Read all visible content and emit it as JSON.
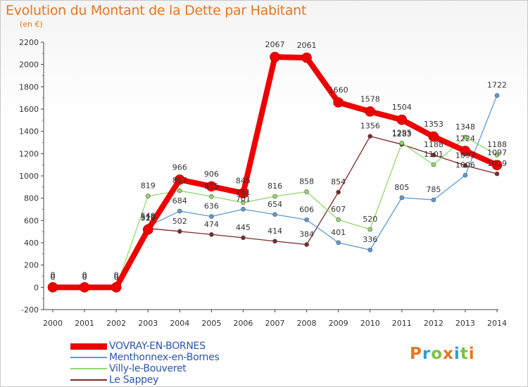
{
  "title": "Evolution du Montant de la Dette par Habitant",
  "unit_label": "(en €)",
  "logo_text": "Proxiti",
  "logo_colors": [
    "#e7761f",
    "#2a9fd6",
    "#7bc143",
    "#e7761f",
    "#2a9fd6",
    "#7bc143",
    "#e7761f"
  ],
  "chart_data": {
    "type": "line",
    "x": [
      "2000",
      "2001",
      "2002",
      "2003",
      "2004",
      "2005",
      "2006",
      "2007",
      "2008",
      "2009",
      "2010",
      "2011",
      "2012",
      "2013",
      "2014"
    ],
    "ylim": [
      -200,
      2200
    ],
    "yticks": [
      -200,
      0,
      200,
      400,
      600,
      800,
      1000,
      1200,
      1400,
      1600,
      1800,
      2000,
      2200
    ],
    "grid": false,
    "legend_position": "bottom-left",
    "series": [
      {
        "name": "VOVRAY-EN-BORNES",
        "color": "#ee0000",
        "width": 8,
        "marker": 7,
        "values": [
          0,
          0,
          0,
          518,
          966,
          906,
          845,
          2067,
          2061,
          1660,
          1578,
          1504,
          1353,
          1224,
          1097
        ]
      },
      {
        "name": "Menthonnex-en-Bornes",
        "color": "#5b9bd5",
        "width": 1.3,
        "marker": 3,
        "values": [
          0,
          0,
          0,
          548,
          684,
          636,
          701,
          654,
          606,
          401,
          336,
          805,
          785,
          1006,
          1722
        ]
      },
      {
        "name": "Villy-le-Bouveret",
        "color": "#90d96a",
        "width": 1.3,
        "marker": 3,
        "values": [
          0,
          0,
          0,
          819,
          867,
          815,
          761,
          816,
          858,
          607,
          520,
          1295,
          1101,
          1348,
          1188
        ]
      },
      {
        "name": "Le Sappey",
        "color": "#7a2a2a",
        "width": 1.3,
        "marker": 3,
        "values": [
          0,
          0,
          0,
          529,
          502,
          474,
          445,
          414,
          384,
          854,
          1356,
          1283,
          1188,
          1093,
          1019
        ]
      }
    ]
  }
}
